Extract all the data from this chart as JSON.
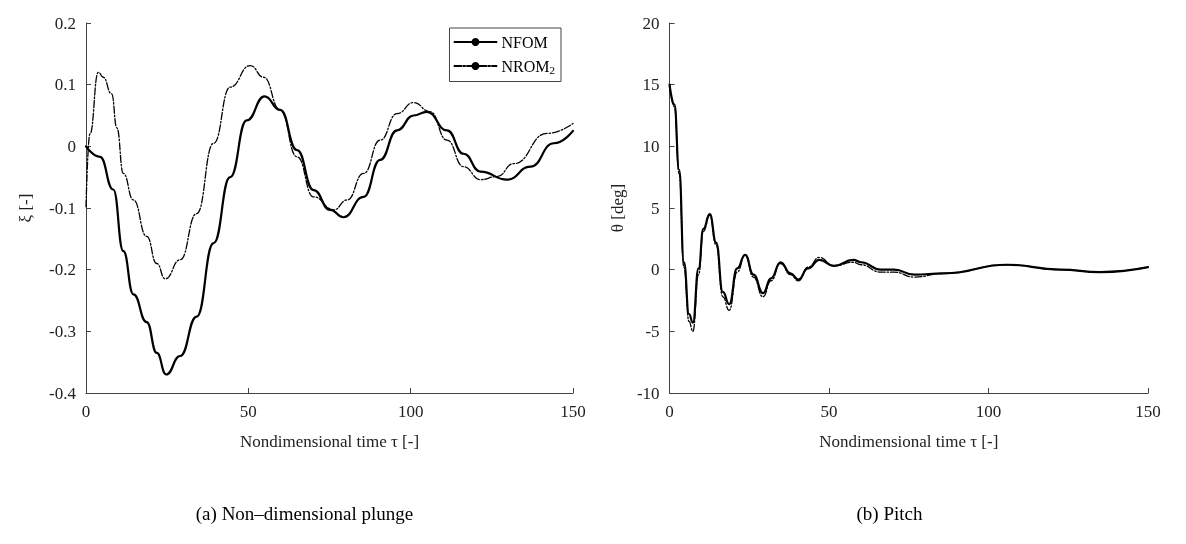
{
  "chart_data": [
    {
      "type": "line",
      "title": "(a) Non–dimensional plunge",
      "xlabel": "Nondimensional time τ [-]",
      "ylabel": "ξ [-]",
      "xlim": [
        0,
        150
      ],
      "xticks": [
        0,
        50,
        100,
        150
      ],
      "ylim": [
        -0.4,
        0.2
      ],
      "yticks": [
        -0.4,
        -0.3,
        -0.2,
        -0.1,
        0,
        0.1,
        0.2
      ],
      "grid": false,
      "legend": "top right",
      "marker": "none",
      "series": [
        {
          "name": "NFOM",
          "color": "#000000",
          "line_style": "solid",
          "x": [
            0,
            4.3,
            8.4,
            11.5,
            14.6,
            18.7,
            21.8,
            24.7,
            29,
            34.1,
            39.3,
            44.4,
            49.5,
            55,
            59.8,
            65,
            70.1,
            75.2,
            79.3,
            85.5,
            90.6,
            95.8,
            100.9,
            105,
            111.2,
            116.3,
            121.5,
            129.7,
            136.9,
            144.1,
            150
          ],
          "values": [
            0,
            -0.017,
            -0.07,
            -0.17,
            -0.24,
            -0.285,
            -0.335,
            -0.37,
            -0.34,
            -0.276,
            -0.157,
            -0.05,
            0.042,
            0.081,
            0.059,
            -0.006,
            -0.071,
            -0.103,
            -0.115,
            -0.082,
            -0.022,
            0.026,
            0.05,
            0.056,
            0.026,
            -0.012,
            -0.041,
            -0.054,
            -0.033,
            0.005,
            0.025
          ]
        },
        {
          "name": "NROM$_{2}$",
          "color": "#000000",
          "line_style": "dashed",
          "x": [
            0,
            1.2,
            3.8,
            5.3,
            7.9,
            9.5,
            11.5,
            14.6,
            18.7,
            21.8,
            24.4,
            29,
            34.1,
            39.3,
            44.4,
            50.6,
            54.7,
            59.8,
            65,
            70.1,
            76.3,
            80.4,
            85.5,
            90.6,
            95.8,
            100.9,
            106,
            111.2,
            116.3,
            121.5,
            126.6,
            131.8,
            142,
            150
          ],
          "values": [
            -0.098,
            0.02,
            0.12,
            0.112,
            0.085,
            0.03,
            -0.044,
            -0.087,
            -0.146,
            -0.19,
            -0.215,
            -0.184,
            -0.109,
            0.005,
            0.096,
            0.131,
            0.112,
            0.059,
            -0.017,
            -0.082,
            -0.103,
            -0.087,
            -0.044,
            0.01,
            0.053,
            0.071,
            0.056,
            0.01,
            -0.033,
            -0.054,
            -0.049,
            -0.028,
            0.021,
            0.037
          ]
        }
      ]
    },
    {
      "type": "line",
      "title": "(b) Pitch",
      "xlabel": "Nondimensional time τ [-]",
      "ylabel": "θ [deg]",
      "xlim": [
        0,
        150
      ],
      "xticks": [
        0,
        50,
        100,
        150
      ],
      "ylim": [
        -10,
        20
      ],
      "yticks": [
        -10,
        -5,
        0,
        5,
        10,
        15,
        20
      ],
      "grid": false,
      "marker": "none",
      "series": [
        {
          "color": "#000000",
          "line_style": "solid",
          "x": [
            0,
            1.5,
            3,
            4.5,
            6.1,
            7.3,
            9.1,
            10.6,
            12.6,
            14.6,
            16.7,
            18.7,
            21.2,
            23.7,
            26.3,
            29.3,
            31.8,
            34.8,
            37.9,
            40.4,
            43.4,
            47,
            51.5,
            57.6,
            60,
            66.2,
            70.4,
            76.7,
            86,
            105.8,
            122.5,
            135,
            150
          ],
          "values": [
            15,
            13.4,
            8.1,
            0.6,
            -3.6,
            -4.3,
            0.1,
            3.3,
            4.5,
            2.2,
            -1.8,
            -2.8,
            0.1,
            1.2,
            -0.4,
            -1.9,
            -0.7,
            0.6,
            -0.3,
            -0.8,
            0.1,
            0.8,
            0.3,
            0.8,
            0.6,
            0,
            0,
            -0.4,
            -0.3,
            0.4,
            0,
            -0.2,
            0.2
          ]
        },
        {
          "color": "#000000",
          "line_style": "dashed",
          "x": [
            0,
            1.5,
            3,
            4.5,
            6.1,
            7.3,
            9.1,
            10.6,
            12.6,
            14.6,
            16.7,
            18.7,
            21.2,
            23.7,
            26.3,
            29.3,
            31.8,
            34.8,
            37.9,
            40.4,
            43.4,
            47,
            51.5,
            57.6,
            60,
            66.2,
            70.4,
            76.7,
            86,
            105.8,
            122.5,
            135,
            150
          ],
          "values": [
            15,
            13.2,
            7.8,
            0.2,
            -4.2,
            -5,
            -0.4,
            3.1,
            4.4,
            2,
            -2.2,
            -3.3,
            -0.2,
            1.2,
            -0.6,
            -2.2,
            -0.9,
            0.5,
            -0.4,
            -0.9,
            0.2,
            1,
            0.3,
            0.6,
            0.4,
            -0.2,
            -0.2,
            -0.6,
            -0.3,
            0.4,
            0,
            -0.2,
            0.2
          ]
        }
      ]
    }
  ]
}
